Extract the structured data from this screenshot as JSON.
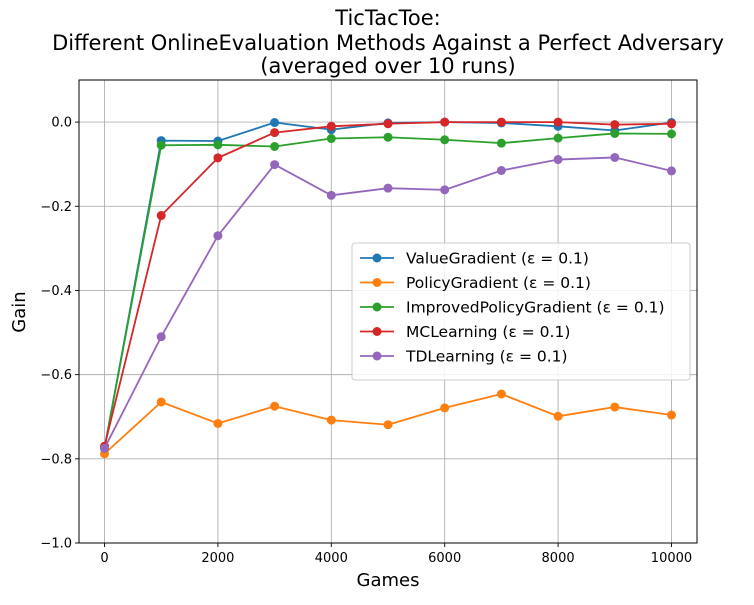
{
  "chart_data": {
    "type": "line",
    "title": [
      "TicTacToe:",
      "Different OnlineEvaluation Methods Against a Perfect Adversary",
      "(averaged over 10 runs)"
    ],
    "xlabel": "Games",
    "ylabel": "Gain",
    "xlim": [
      -450,
      10450
    ],
    "ylim": [
      -1.0,
      0.1
    ],
    "xticks": [
      0,
      2000,
      4000,
      6000,
      8000,
      10000
    ],
    "xtick_labels": [
      "0",
      "2000",
      "4000",
      "6000",
      "8000",
      "10000"
    ],
    "yticks": [
      -1.0,
      -0.8,
      -0.6,
      -0.4,
      -0.2,
      0.0
    ],
    "ytick_labels": [
      "−1.0",
      "−0.8",
      "−0.6",
      "−0.4",
      "−0.2",
      "0.0"
    ],
    "grid": true,
    "legend_position": "center-right",
    "x": [
      0,
      1000,
      2000,
      3000,
      4000,
      5000,
      6000,
      7000,
      8000,
      9000,
      10000
    ],
    "series": [
      {
        "name": "ValueGradient (ε = 0.1)",
        "color": "#1f77b4",
        "values": [
          -0.775,
          -0.044,
          -0.045,
          -0.001,
          -0.018,
          -0.002,
          0.0,
          -0.002,
          -0.01,
          -0.02,
          -0.001
        ]
      },
      {
        "name": "PolicyGradient (ε = 0.1)",
        "color": "#ff7f0e",
        "values": [
          -0.788,
          -0.665,
          -0.716,
          -0.675,
          -0.708,
          -0.719,
          -0.679,
          -0.646,
          -0.699,
          -0.677,
          -0.696
        ]
      },
      {
        "name": "ImprovedPolicyGradient (ε = 0.1)",
        "color": "#2ca02c",
        "values": [
          -0.775,
          -0.055,
          -0.054,
          -0.058,
          -0.039,
          -0.036,
          -0.042,
          -0.05,
          -0.038,
          -0.027,
          -0.028
        ]
      },
      {
        "name": "MCLearning (ε = 0.1)",
        "color": "#d62728",
        "values": [
          -0.77,
          -0.222,
          -0.085,
          -0.025,
          -0.01,
          -0.004,
          0.0,
          0.0,
          0.0,
          -0.006,
          -0.004
        ]
      },
      {
        "name": "TDLearning (ε = 0.1)",
        "color": "#9467bd",
        "values": [
          -0.775,
          -0.51,
          -0.27,
          -0.101,
          -0.174,
          -0.157,
          -0.161,
          -0.115,
          -0.089,
          -0.084,
          -0.116
        ]
      }
    ]
  }
}
